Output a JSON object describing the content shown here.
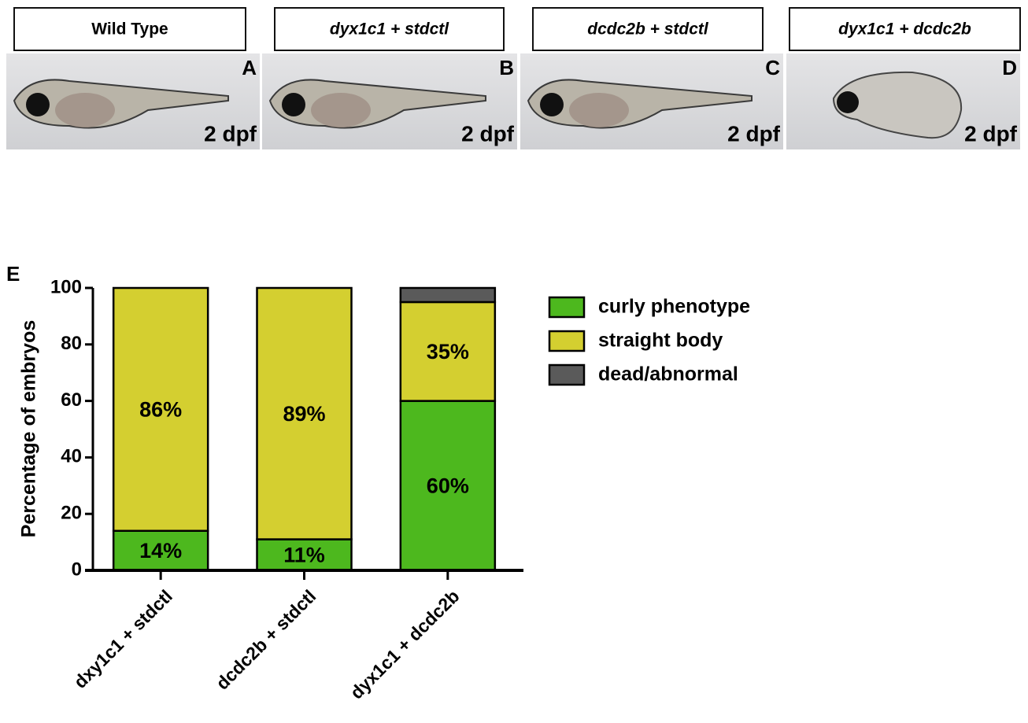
{
  "panels": [
    {
      "title": "Wild Type",
      "letter": "A",
      "stage": "2 dpf"
    },
    {
      "title": "dyx1c1 + stdctl",
      "letter": "B",
      "stage": "2 dpf"
    },
    {
      "title": "dcdc2b + stdctl",
      "letter": "C",
      "stage": "2 dpf"
    },
    {
      "title": "dyx1c1 + dcdc2b",
      "letter": "D",
      "stage": "2 dpf"
    }
  ],
  "chart_data": {
    "type": "stacked_bar",
    "panel_label": "E",
    "ylabel": "Percentage of embryos",
    "categories": [
      "dxy1c1 + stdctl",
      "dcdc2b + stdctl",
      "dyx1c1 + dcdc2b"
    ],
    "series": [
      {
        "name": "curly phenotype",
        "color": "#4db81e",
        "values": [
          14,
          11,
          60
        ],
        "value_labels": [
          "14%",
          "11%",
          "60%"
        ]
      },
      {
        "name": "straight body",
        "color": "#d4cf30",
        "values": [
          86,
          89,
          35
        ],
        "value_labels": [
          "86%",
          "89%",
          "35%"
        ]
      },
      {
        "name": "dead/abnormal",
        "color": "#5a5a5a",
        "values": [
          0,
          0,
          5
        ]
      }
    ],
    "ylim": [
      0,
      100
    ],
    "yticks": [
      0,
      20,
      40,
      60,
      80,
      100
    ]
  }
}
